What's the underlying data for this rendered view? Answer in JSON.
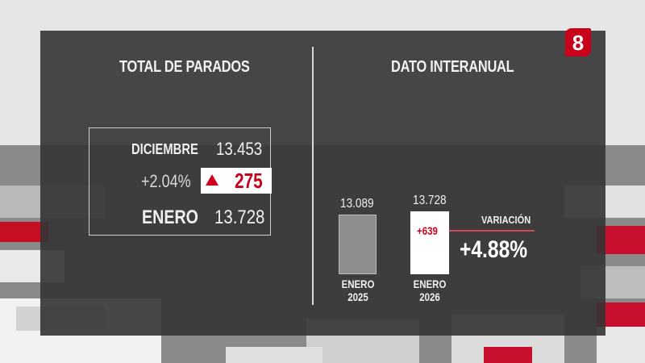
{
  "logo": {
    "text": "8"
  },
  "left_panel": {
    "title": "TOTAL DE PARADOS",
    "rows": {
      "prev_label": "DICIEMBRE",
      "prev_value": "13.453",
      "change_pct": "+2.04%",
      "change_abs": "275",
      "curr_label": "ENERO",
      "curr_value": "13.728"
    }
  },
  "right_panel": {
    "title": "DATO INTERANUAL",
    "bars": [
      {
        "value_label": "13.089",
        "cat_line1": "ENERO",
        "cat_line2": "2025",
        "value": 13089
      },
      {
        "value_label": "13.728",
        "cat_line1": "ENERO",
        "cat_line2": "2026",
        "value": 13728
      }
    ],
    "diff_label": "+639",
    "variation_label": "VARIACIÓN",
    "variation_value": "+4.88%"
  },
  "colors": {
    "accent_red": "#d0021b",
    "panel": "#343434"
  }
}
